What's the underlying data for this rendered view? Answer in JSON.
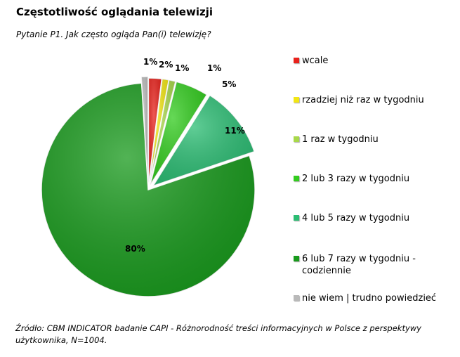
{
  "title": "Częstotliwość oglądania telewizji",
  "subtitle": "Pytanie P1. Jak często ogląda Pan(i) telewizję?",
  "source": "Źródło: CBM INDICATOR badanie CAPI - Różnorodność treści informacyjnych w Polsce z perspektywy użytkownika, N=1004.",
  "chart_data": {
    "type": "pie",
    "title": "Częstotliwość oglądania telewizji",
    "legend_position": "right",
    "slices": [
      {
        "label": "wcale",
        "value": 2,
        "value_label": "2%",
        "color": "#e8221c"
      },
      {
        "label": "rzadziej niż raz w tygodniu",
        "value": 1,
        "value_label": "1%",
        "color": "#f2e614"
      },
      {
        "label": "1 raz w tygodniu",
        "value": 1,
        "value_label": "1%",
        "color": "#a8d84a"
      },
      {
        "label": "2 lub 3 razy w tygodniu",
        "value": 5,
        "value_label": "5%",
        "color": "#33cc1f"
      },
      {
        "label": "4 lub 5 razy w tygodniu",
        "value": 11,
        "value_label": "11%",
        "color": "#2bbd73"
      },
      {
        "label": "6 lub 7 razy w tygodniu - codziennie",
        "value": 80,
        "value_label": "80%",
        "color": "#189a1c"
      },
      {
        "label": "nie wiem | trudno powiedzieć",
        "value": 1,
        "value_label": "1%",
        "color": "#b9b9b9"
      }
    ]
  }
}
